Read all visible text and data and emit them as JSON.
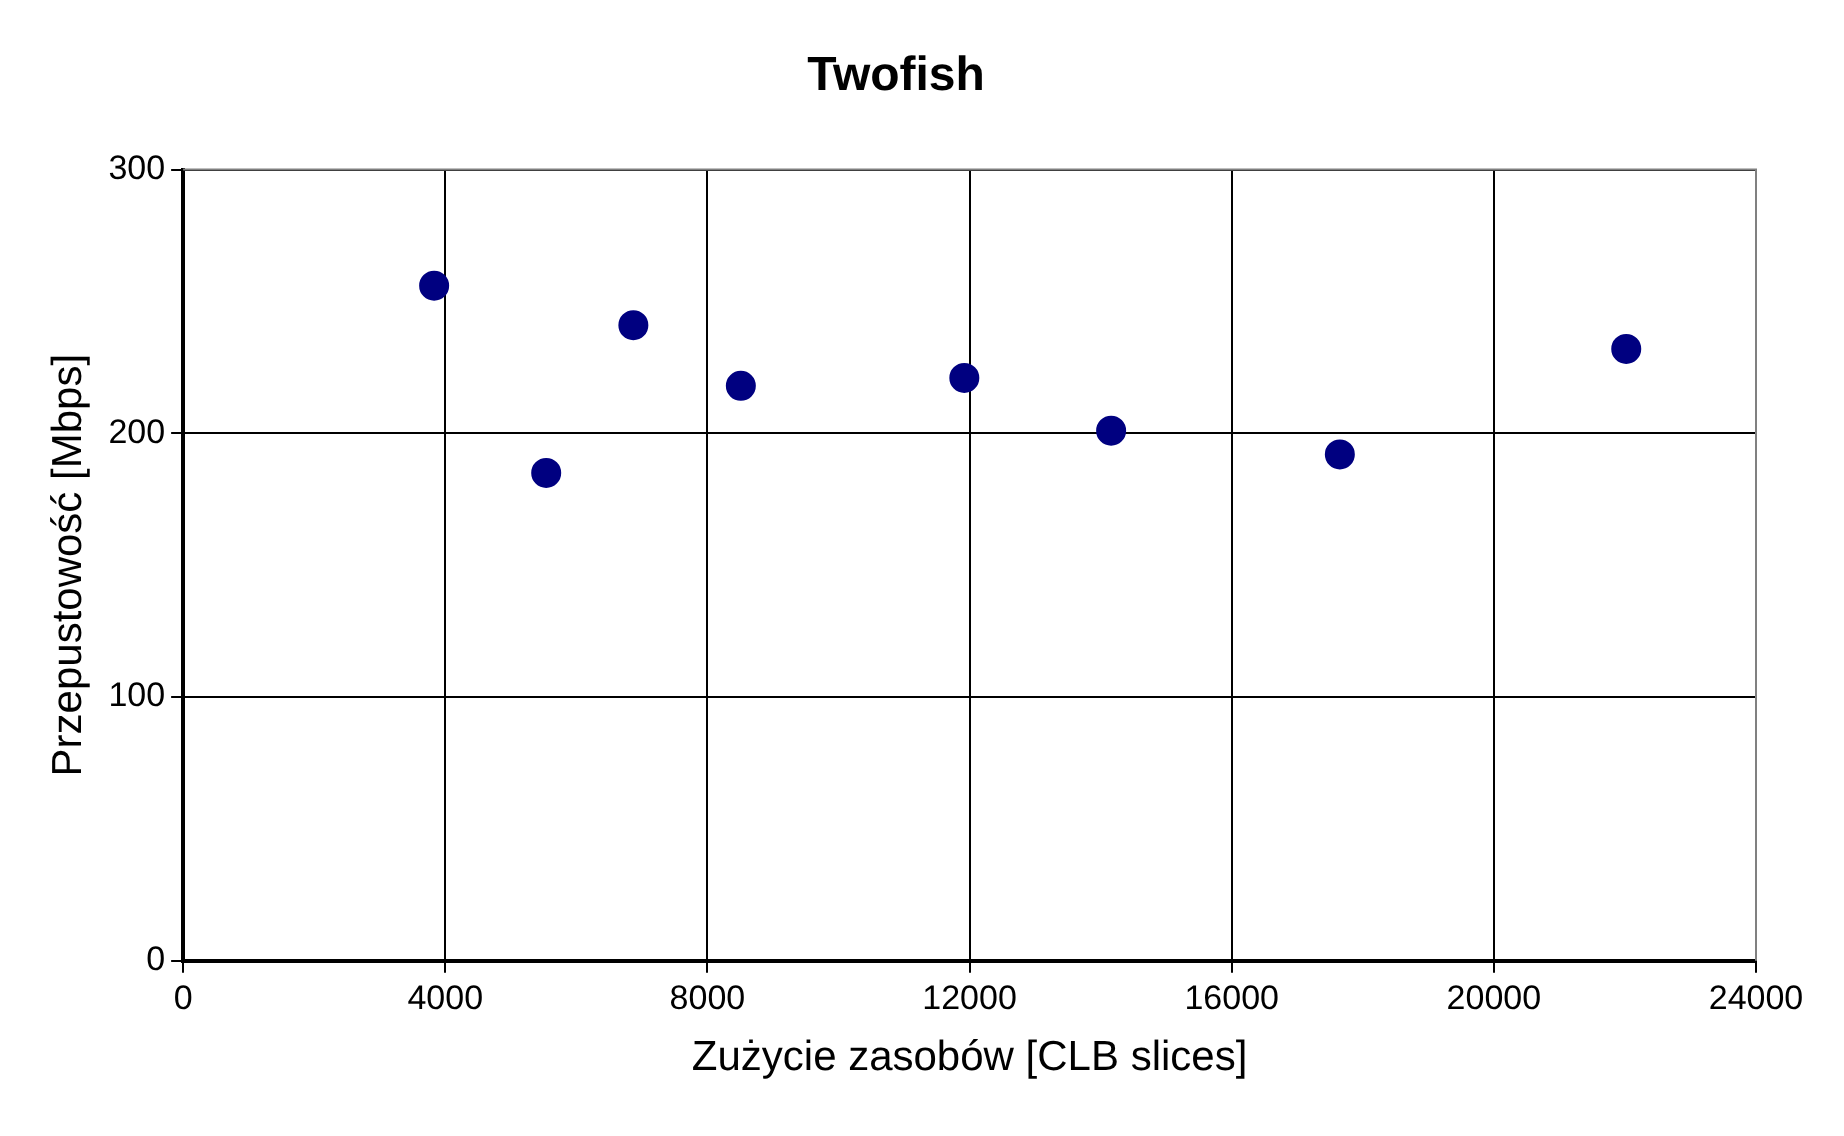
{
  "chart_data": {
    "type": "scatter",
    "title": "Twofish",
    "xlabel": "Zużycie zasobów [CLB slices]",
    "ylabel": "Przepustowość [Mbps]",
    "x": [
      3830,
      5540,
      6870,
      8510,
      11920,
      14160,
      17650,
      22020
    ],
    "values": [
      256,
      185,
      241,
      218,
      221,
      201,
      192,
      232
    ],
    "color": "#000080",
    "marker": "circle",
    "xlim": [
      0,
      24000
    ],
    "xticks": [
      0,
      4000,
      8000,
      12000,
      16000,
      20000,
      24000
    ],
    "ylim": [
      0,
      300
    ],
    "yticks": [
      0,
      100,
      200,
      300
    ],
    "grid": true,
    "legend": false
  }
}
